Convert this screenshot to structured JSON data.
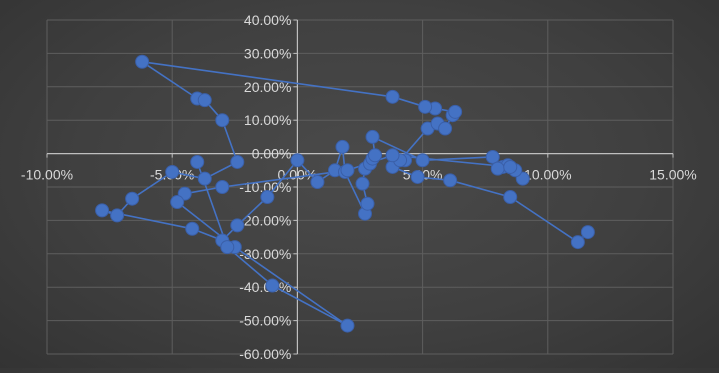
{
  "chart_data": {
    "type": "scatter",
    "title": "",
    "xlabel": "",
    "ylabel": "",
    "xlim": [
      -0.1,
      0.15
    ],
    "ylim": [
      -0.6,
      0.4
    ],
    "x_ticks": [
      -0.1,
      -0.05,
      0.0,
      0.05,
      0.1,
      0.15
    ],
    "y_ticks": [
      0.4,
      0.3,
      0.2,
      0.1,
      0.0,
      -0.1,
      -0.2,
      -0.3,
      -0.4,
      -0.5,
      -0.6
    ],
    "x_tick_labels": [
      "-10.00%",
      "-5.00%",
      "0.00%",
      "5.00%",
      "10.00%",
      "15.00%"
    ],
    "y_tick_labels": [
      "40.00%",
      "30.00%",
      "20.00%",
      "10.00%",
      "0.00%",
      "-10.00%",
      "-20.00%",
      "-30.00%",
      "-40.00%",
      "-50.00%",
      "-60.00%"
    ],
    "grid": true,
    "legend": "none",
    "connected": true,
    "series": [
      {
        "color": "#4472c4",
        "points": [
          [
            0.116,
            -0.235
          ],
          [
            0.112,
            -0.265
          ],
          [
            0.085,
            -0.13
          ],
          [
            0.061,
            -0.08
          ],
          [
            0.048,
            -0.07
          ],
          [
            0.038,
            -0.04
          ],
          [
            0.043,
            -0.02
          ],
          [
            0.041,
            -0.02
          ],
          [
            0.052,
            0.075
          ],
          [
            0.056,
            0.09
          ],
          [
            0.059,
            0.075
          ],
          [
            0.062,
            0.115
          ],
          [
            0.063,
            0.125
          ],
          [
            0.055,
            0.135
          ],
          [
            0.051,
            0.14
          ],
          [
            0.038,
            0.17
          ],
          [
            -0.062,
            0.275
          ],
          [
            -0.04,
            0.165
          ],
          [
            -0.037,
            0.16
          ],
          [
            -0.03,
            0.1
          ],
          [
            -0.024,
            -0.025
          ],
          [
            -0.037,
            -0.075
          ],
          [
            -0.05,
            -0.055
          ],
          [
            -0.066,
            -0.135
          ],
          [
            -0.072,
            -0.185
          ],
          [
            -0.078,
            -0.17
          ],
          [
            -0.042,
            -0.225
          ],
          [
            -0.03,
            -0.26
          ],
          [
            -0.024,
            -0.215
          ],
          [
            -0.012,
            -0.13
          ],
          [
            0.0,
            -0.02
          ],
          [
            0.008,
            -0.085
          ],
          [
            0.015,
            -0.05
          ],
          [
            0.018,
            0.02
          ],
          [
            0.019,
            -0.055
          ],
          [
            0.027,
            -0.18
          ],
          [
            0.028,
            -0.15
          ],
          [
            0.026,
            -0.09
          ],
          [
            0.027,
            -0.045
          ],
          [
            0.029,
            -0.03
          ],
          [
            0.03,
            -0.015
          ],
          [
            0.031,
            -0.005
          ],
          [
            0.03,
            0.05
          ],
          [
            0.05,
            -0.02
          ],
          [
            0.078,
            -0.01
          ],
          [
            0.082,
            -0.04
          ],
          [
            0.084,
            -0.035
          ],
          [
            0.08,
            -0.045
          ],
          [
            0.09,
            -0.075
          ],
          [
            0.087,
            -0.05
          ],
          [
            0.085,
            -0.04
          ],
          [
            0.038,
            -0.005
          ],
          [
            0.02,
            -0.05
          ],
          [
            -0.03,
            -0.1
          ],
          [
            -0.045,
            -0.12
          ],
          [
            -0.048,
            -0.145
          ],
          [
            -0.025,
            -0.28
          ],
          [
            0.02,
            -0.515
          ],
          [
            -0.01,
            -0.395
          ],
          [
            -0.028,
            -0.28
          ],
          [
            -0.04,
            -0.025
          ]
        ]
      }
    ]
  }
}
